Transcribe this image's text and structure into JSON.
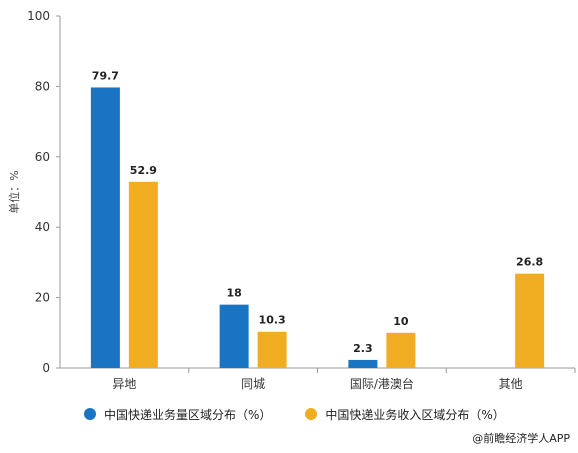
{
  "chart_data": {
    "type": "bar",
    "categories": [
      "异地",
      "同城",
      "国际/港澳台",
      "其他"
    ],
    "series": [
      {
        "name": "中国快递业务量区域分布（%）",
        "values": [
          79.7,
          18,
          2.3,
          null
        ],
        "color": "#1a74c4"
      },
      {
        "name": "中国快递业务收入区域分布（%）",
        "values": [
          52.9,
          10.3,
          10,
          26.8
        ],
        "color": "#f0ad22"
      }
    ],
    "ylabel": "单位：%",
    "ylim": [
      0,
      100
    ],
    "yticks": [
      "0",
      "20",
      "40",
      "60",
      "80",
      "100"
    ],
    "grid": false,
    "legend_position": "bottom-left"
  },
  "source": "@前瞻经济学人APP"
}
